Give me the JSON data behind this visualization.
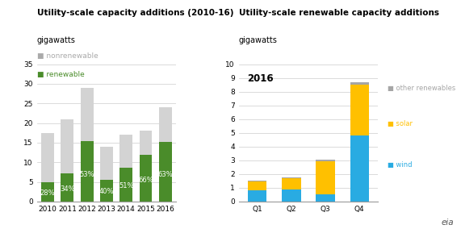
{
  "left": {
    "title": "Utility-scale capacity additions (2010-16)",
    "subtitle": "gigawatts",
    "years": [
      2010,
      2011,
      2012,
      2013,
      2014,
      2015,
      2016
    ],
    "renewable": [
      4.9,
      7.14,
      15.37,
      5.6,
      8.67,
      11.88,
      15.12
    ],
    "nonrenewable": [
      12.6,
      13.86,
      13.63,
      8.4,
      8.33,
      6.12,
      8.88
    ],
    "pct_labels": [
      "28%",
      "34%",
      "53%",
      "40%",
      "51%",
      "66%",
      "63%"
    ],
    "ylim": [
      0,
      35
    ],
    "yticks": [
      0,
      5,
      10,
      15,
      20,
      25,
      30,
      35
    ],
    "color_renewable": "#4a8c2a",
    "color_nonrenewable": "#d3d3d3",
    "legend_nonrenewable": "nonrenewable",
    "legend_renewable": "renewable"
  },
  "right": {
    "title": "Utility-scale renewable capacity additions",
    "subtitle": "gigawatts",
    "quarters": [
      "Q1",
      "Q2",
      "Q3",
      "Q4"
    ],
    "wind": [
      0.8,
      0.85,
      0.55,
      4.8
    ],
    "solar": [
      0.65,
      0.85,
      2.4,
      3.7
    ],
    "other": [
      0.1,
      0.07,
      0.1,
      0.2
    ],
    "ylim": [
      0,
      10
    ],
    "yticks": [
      0,
      1,
      2,
      3,
      4,
      5,
      6,
      7,
      8,
      9,
      10
    ],
    "color_wind": "#29abe2",
    "color_solar": "#ffc000",
    "color_other": "#a6a6a6",
    "legend_wind": "wind",
    "legend_solar": "solar",
    "legend_other": "other renewables",
    "annotation": "2016"
  },
  "eia_logo_text": "eia"
}
